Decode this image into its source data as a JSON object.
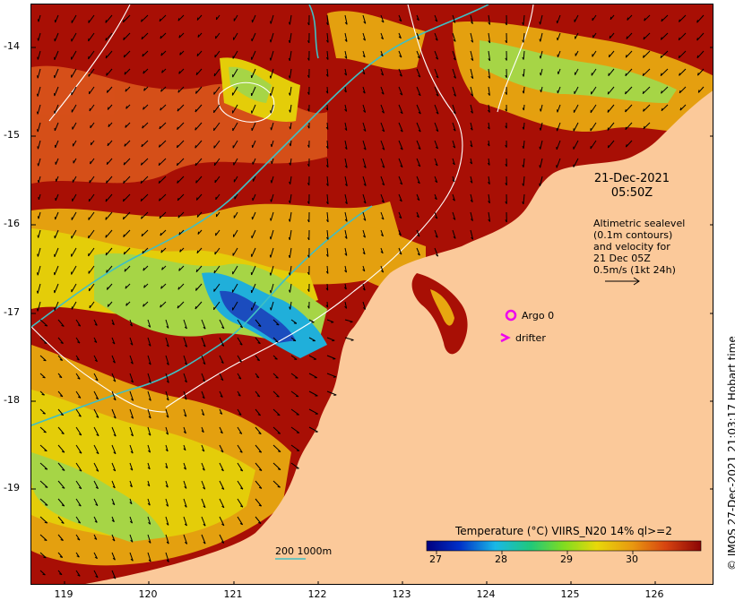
{
  "axes": {
    "y_ticks": [
      "-14",
      "-15",
      "-16",
      "-17",
      "-18",
      "-19"
    ],
    "x_ticks": [
      "119",
      "120",
      "121",
      "122",
      "123",
      "124",
      "125",
      "126"
    ]
  },
  "datetime": {
    "date": "21-Dec-2021",
    "time": "05:50Z"
  },
  "altimetry_legend": {
    "line1": "Altimetric sealevel",
    "line2": "(0.1m contours)",
    "line3": "and velocity for",
    "line4": "21 Dec 05Z",
    "line5": "0.5m/s (1kt 24h)"
  },
  "markers": {
    "argo_label": "Argo 0",
    "drifter_label": "drifter"
  },
  "scale_bar": {
    "label": "200  1000m"
  },
  "colorbar": {
    "title": "Temperature (°C) VIIRS_N20 14% ql>=2",
    "ticks": [
      "27",
      "28",
      "29",
      "30"
    ]
  },
  "credit": "© IMOS 27-Dec-2021 21:03:17 Hobart time",
  "colors": {
    "land": "#fbc99a",
    "sst_hot": "#a80f05",
    "sst_warm": "#d8531a",
    "sst_mid": "#e8a810",
    "sst_yellow": "#e8d80a",
    "sst_green": "#a6e04a",
    "sst_cyan": "#19b8e6",
    "sst_blue": "#1450c8",
    "isobath": "#3fbfc4",
    "marker": "#ee00ee"
  }
}
